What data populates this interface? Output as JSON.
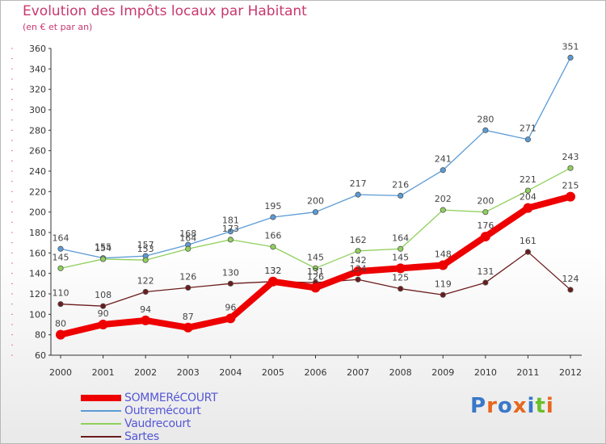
{
  "header": {
    "title": "Evolution des Impôts locaux par Habitant",
    "subtitle": "(en € et par an)"
  },
  "logo": {
    "text": "Proxiti",
    "colors": [
      "#3a78c8",
      "#e8661e",
      "#3a78c8",
      "#e8661e",
      "#3a78c8",
      "#6abf2a",
      "#e8661e"
    ]
  },
  "chart_data": {
    "type": "line",
    "title": "Evolution des Impôts locaux par Habitant",
    "subtitle": "(en € et par an)",
    "x": [
      "2000",
      "2001",
      "2002",
      "2003",
      "2004",
      "2005",
      "2006",
      "2007",
      "2008",
      "2009",
      "2010",
      "2011",
      "2012"
    ],
    "ylim": [
      60,
      360
    ],
    "yticks": [
      60,
      80,
      100,
      120,
      140,
      160,
      180,
      200,
      220,
      240,
      260,
      280,
      300,
      320,
      340,
      360
    ],
    "grid": false,
    "legend_position": "bottom-left",
    "series": [
      {
        "name": "SOMMERéCOURT",
        "color": "#ee0000",
        "values": [
          80,
          90,
          94,
          87,
          96,
          132,
          126,
          142,
          145,
          148,
          176,
          204,
          215
        ]
      },
      {
        "name": "Outremécourt",
        "color": "#5b9bd5",
        "values": [
          164,
          155,
          157,
          168,
          181,
          195,
          200,
          217,
          216,
          241,
          280,
          271,
          351
        ]
      },
      {
        "name": "Vaudrecourt",
        "color": "#8fd05c",
        "values": [
          145,
          154,
          153,
          164,
          173,
          166,
          145,
          162,
          164,
          202,
          200,
          221,
          243
        ]
      },
      {
        "name": "Sartes",
        "color": "#6b1c1c",
        "values": [
          110,
          108,
          122,
          126,
          130,
          132,
          131,
          134,
          125,
          119,
          131,
          161,
          124
        ]
      }
    ]
  }
}
